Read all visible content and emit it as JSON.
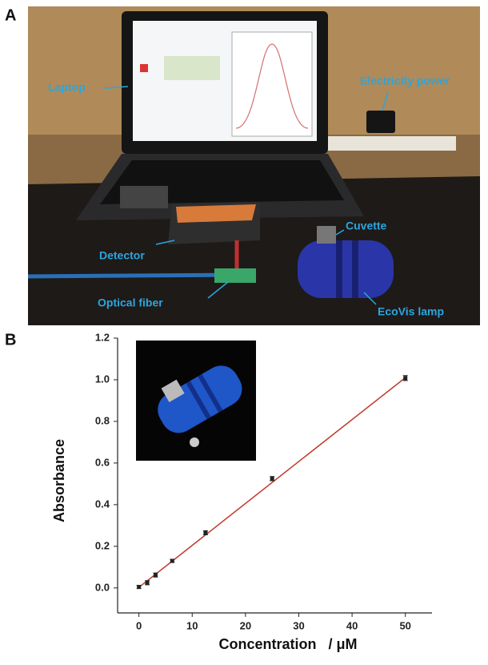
{
  "panels": [
    "A",
    "B"
  ],
  "photo": {
    "labels": [
      "Laptop",
      "Electricity power",
      "Cuvette",
      "Detector",
      "Optical fiber",
      "EcoVis lamp"
    ]
  },
  "chart_data": {
    "type": "scatter",
    "x_label": "Concentration   / μM",
    "y_label": "Absorbance",
    "x": [
      0,
      1.5625,
      3.125,
      6.25,
      12.5,
      25,
      50
    ],
    "values": [
      0.005,
      0.025,
      0.062,
      0.13,
      0.265,
      0.525,
      1.008
    ],
    "errors": [
      0.008,
      0.01,
      0.01,
      0.008,
      0.01,
      0.01,
      0.012
    ],
    "color": "#222222",
    "fit": {
      "x": [
        0,
        50
      ],
      "values": [
        0.003,
        1.01
      ],
      "color": "#c0392b"
    },
    "xlim": [
      -4,
      55
    ],
    "ylim": [
      -0.12,
      1.2
    ],
    "xticks": [
      0,
      10,
      20,
      30,
      40,
      50
    ],
    "yticks": [
      {
        "value": 0,
        "label": "0.0"
      },
      {
        "value": 0.2,
        "label": "0.2"
      },
      {
        "value": 0.4,
        "label": "0.4"
      },
      {
        "value": 0.6,
        "label": "0.6"
      },
      {
        "value": 0.8,
        "label": "0.8"
      },
      {
        "value": 1,
        "label": "1.0"
      },
      {
        "value": 1.2,
        "label": "1.2"
      }
    ]
  }
}
